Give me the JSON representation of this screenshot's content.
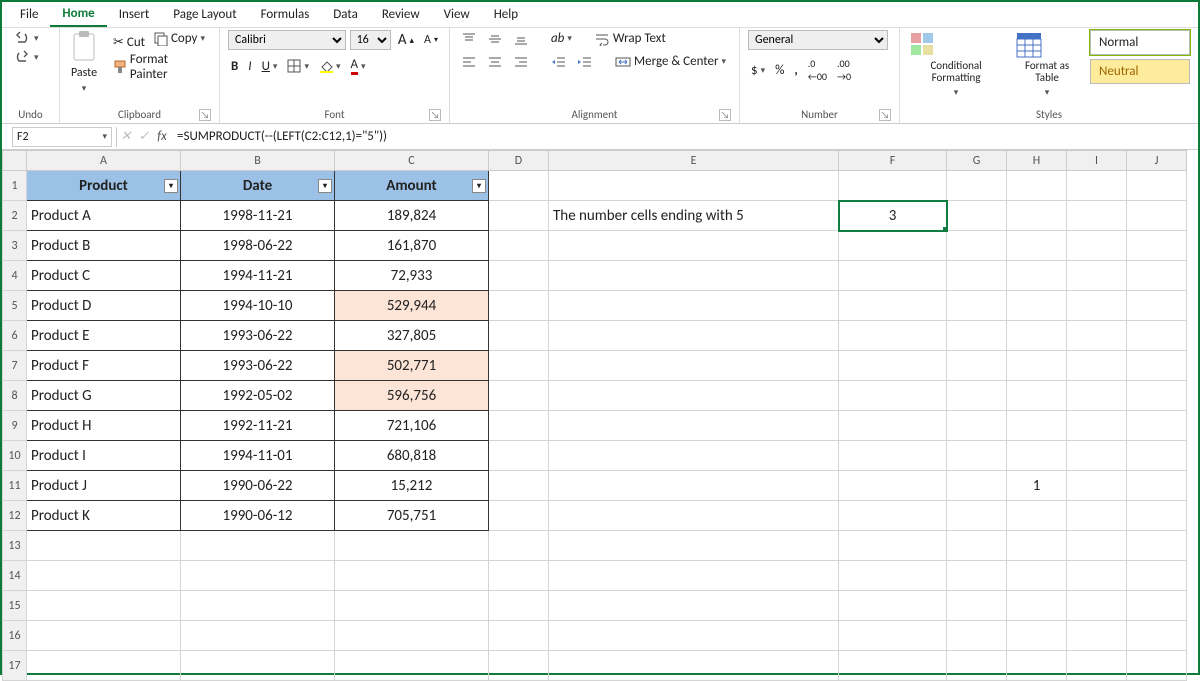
{
  "tabs": [
    "File",
    "Home",
    "Insert",
    "Page Layout",
    "Formulas",
    "Data",
    "Review",
    "View",
    "Help"
  ],
  "active_tab": "Home",
  "ribbon": {
    "undo_group": "Undo",
    "clipboard_group": "Clipboard",
    "paste": "Paste",
    "cut": "Cut",
    "copy": "Copy",
    "format_painter": "Format Painter",
    "font_group": "Font",
    "font_name": "Calibri",
    "font_size": "16",
    "alignment_group": "Alignment",
    "wrap_text": "Wrap Text",
    "merge_center": "Merge & Center",
    "number_group": "Number",
    "number_format": "General",
    "conditional_formatting": "Conditional Formatting",
    "format_as_table": "Format as Table",
    "styles_group": "Styles",
    "style_normal": "Normal",
    "style_neutral": "Neutral"
  },
  "namebox": "F2",
  "formula": "=SUMPRODUCT(--(LEFT(C2:C12,1)=\"5\"))",
  "columns": {
    "headers": [
      "A",
      "B",
      "C",
      "D",
      "E",
      "F",
      "G",
      "H",
      "I",
      "J"
    ],
    "widths": [
      154,
      154,
      154,
      60,
      290,
      108,
      60,
      60,
      60,
      60
    ]
  },
  "row_count": 17,
  "table": {
    "header_bg": "#9bc2e6",
    "highlight_bg": "#fce4d6",
    "border_color": "#333333",
    "headers": [
      "Product",
      "Date",
      "Amount"
    ],
    "rows": [
      {
        "p": "Product A",
        "d": "1998-11-21",
        "a": "189,824",
        "hl": false
      },
      {
        "p": "Product B",
        "d": "1998-06-22",
        "a": "161,870",
        "hl": false
      },
      {
        "p": "Product C",
        "d": "1994-11-21",
        "a": "72,933",
        "hl": false
      },
      {
        "p": "Product D",
        "d": "1994-10-10",
        "a": "529,944",
        "hl": true
      },
      {
        "p": "Product E",
        "d": "1993-06-22",
        "a": "327,805",
        "hl": false
      },
      {
        "p": "Product F",
        "d": "1993-06-22",
        "a": "502,771",
        "hl": true
      },
      {
        "p": "Product G",
        "d": "1992-05-02",
        "a": "596,756",
        "hl": true
      },
      {
        "p": "Product H",
        "d": "1992-11-21",
        "a": "721,106",
        "hl": false
      },
      {
        "p": "Product I",
        "d": "1994-11-01",
        "a": "680,818",
        "hl": false
      },
      {
        "p": "Product J",
        "d": "1990-06-22",
        "a": "15,212",
        "hl": false
      },
      {
        "p": "Product K",
        "d": "1990-06-12",
        "a": "705,751",
        "hl": false
      }
    ]
  },
  "extra_cells": {
    "E2": "The number cells ending with 5",
    "F2": "3",
    "H11": "1"
  },
  "selected_cell": "F2",
  "colors": {
    "accent": "#0f7b3a",
    "selection": "#107c41",
    "grid_border": "#d4d4d4",
    "header_bg": "#f0f0f0"
  }
}
